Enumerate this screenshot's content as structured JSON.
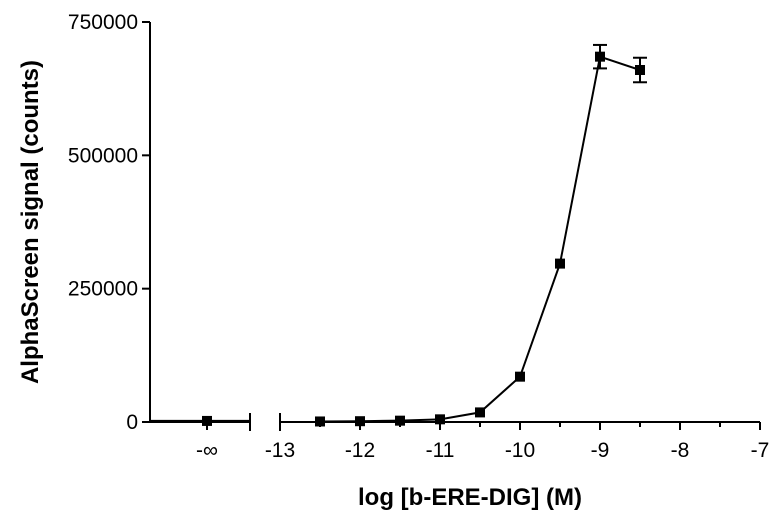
{
  "chart_data": {
    "type": "line",
    "xlabel": "log [b-ERE-DIG] (M)",
    "ylabel": "AlphaScreen signal (counts)",
    "xlim": [
      -13,
      -7
    ],
    "ylim": [
      0,
      750000
    ],
    "xticks": [
      "-13",
      "-12",
      "-11",
      "-10",
      "-9",
      "-8",
      "-7"
    ],
    "yticks": [
      "0",
      "250000",
      "500000",
      "750000"
    ],
    "broken_x_axis": true,
    "control_tick_label": "-∞",
    "grid": false,
    "legend": "none",
    "marker": "square",
    "line_color": "#000000",
    "control_point": {
      "x": "-∞",
      "y": 2000
    },
    "series": [
      {
        "x": [
          -12.5,
          -12.0,
          -11.5,
          -11.0,
          -10.5,
          -10.0,
          -9.5,
          -9.0,
          -8.5
        ],
        "y": [
          1000,
          1500,
          2500,
          5000,
          18000,
          85000,
          297000,
          685000,
          660000
        ],
        "error": [
          0,
          0,
          0,
          0,
          0,
          0,
          0,
          22000,
          23000
        ]
      }
    ]
  }
}
